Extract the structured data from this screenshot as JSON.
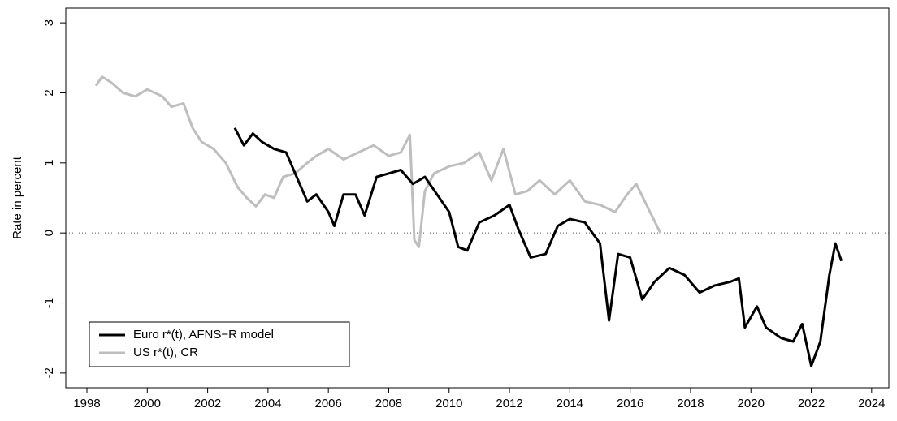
{
  "chart_data": {
    "type": "line",
    "ylabel": "Rate in percent",
    "xlim": [
      1997.3,
      2024.57
    ],
    "xticks": [
      1998,
      2000,
      2002,
      2004,
      2006,
      2008,
      2010,
      2012,
      2014,
      2016,
      2018,
      2020,
      2022,
      2024
    ],
    "ylim": [
      -2.21,
      3.21
    ],
    "yticks": [
      -2,
      -1,
      0,
      1,
      2,
      3
    ],
    "hline": 0,
    "legend": "bottom-left",
    "series": [
      {
        "name": "Euro r*(t), AFNS−R model",
        "color": "#000000",
        "x": [
          2002.9,
          2003.2,
          2003.5,
          2003.8,
          2004.2,
          2004.6,
          2005.0,
          2005.3,
          2005.6,
          2006.0,
          2006.2,
          2006.5,
          2006.9,
          2007.2,
          2007.6,
          2008.0,
          2008.4,
          2008.8,
          2009.2,
          2009.6,
          2010.0,
          2010.3,
          2010.6,
          2011.0,
          2011.5,
          2012.0,
          2012.3,
          2012.7,
          2013.2,
          2013.6,
          2014.0,
          2014.5,
          2015.0,
          2015.3,
          2015.6,
          2016.0,
          2016.4,
          2016.8,
          2017.3,
          2017.8,
          2018.3,
          2018.8,
          2019.3,
          2019.6,
          2019.8,
          2020.2,
          2020.5,
          2021.0,
          2021.4,
          2021.7,
          2022.0,
          2022.3,
          2022.6,
          2022.8,
          2023.0
        ],
        "values": [
          1.5,
          1.25,
          1.42,
          1.3,
          1.2,
          1.15,
          0.75,
          0.45,
          0.55,
          0.3,
          0.1,
          0.55,
          0.55,
          0.25,
          0.8,
          0.85,
          0.9,
          0.7,
          0.8,
          0.55,
          0.3,
          -0.2,
          -0.25,
          0.15,
          0.25,
          0.4,
          0.05,
          -0.35,
          -0.3,
          0.1,
          0.2,
          0.15,
          -0.15,
          -1.25,
          -0.3,
          -0.35,
          -0.95,
          -0.7,
          -0.5,
          -0.6,
          -0.85,
          -0.75,
          -0.7,
          -0.65,
          -1.35,
          -1.05,
          -1.35,
          -1.5,
          -1.55,
          -1.3,
          -1.9,
          -1.55,
          -0.6,
          -0.15,
          -0.4
        ]
      },
      {
        "name": "US r*(t), CR",
        "color": "#bebebe",
        "x": [
          1998.3,
          1998.5,
          1998.8,
          1999.2,
          1999.6,
          2000.0,
          2000.5,
          2000.8,
          2001.2,
          2001.5,
          2001.8,
          2002.2,
          2002.6,
          2003.0,
          2003.3,
          2003.6,
          2003.9,
          2004.2,
          2004.5,
          2004.9,
          2005.3,
          2005.6,
          2006.0,
          2006.5,
          2007.0,
          2007.5,
          2008.0,
          2008.4,
          2008.7,
          2008.85,
          2009.0,
          2009.2,
          2009.5,
          2010.0,
          2010.5,
          2011.0,
          2011.4,
          2011.8,
          2012.2,
          2012.6,
          2013.0,
          2013.5,
          2014.0,
          2014.5,
          2015.0,
          2015.5,
          2015.9,
          2016.2,
          2016.6,
          2017.0
        ],
        "values": [
          2.1,
          2.23,
          2.15,
          2.0,
          1.95,
          2.05,
          1.95,
          1.8,
          1.85,
          1.5,
          1.3,
          1.2,
          1.0,
          0.65,
          0.5,
          0.38,
          0.55,
          0.5,
          0.8,
          0.85,
          1.0,
          1.1,
          1.2,
          1.05,
          1.15,
          1.25,
          1.1,
          1.15,
          1.4,
          -0.1,
          -0.2,
          0.6,
          0.85,
          0.95,
          1.0,
          1.15,
          0.75,
          1.2,
          0.55,
          0.6,
          0.75,
          0.55,
          0.75,
          0.45,
          0.4,
          0.3,
          0.55,
          0.7,
          0.35,
          0.0
        ]
      }
    ]
  }
}
